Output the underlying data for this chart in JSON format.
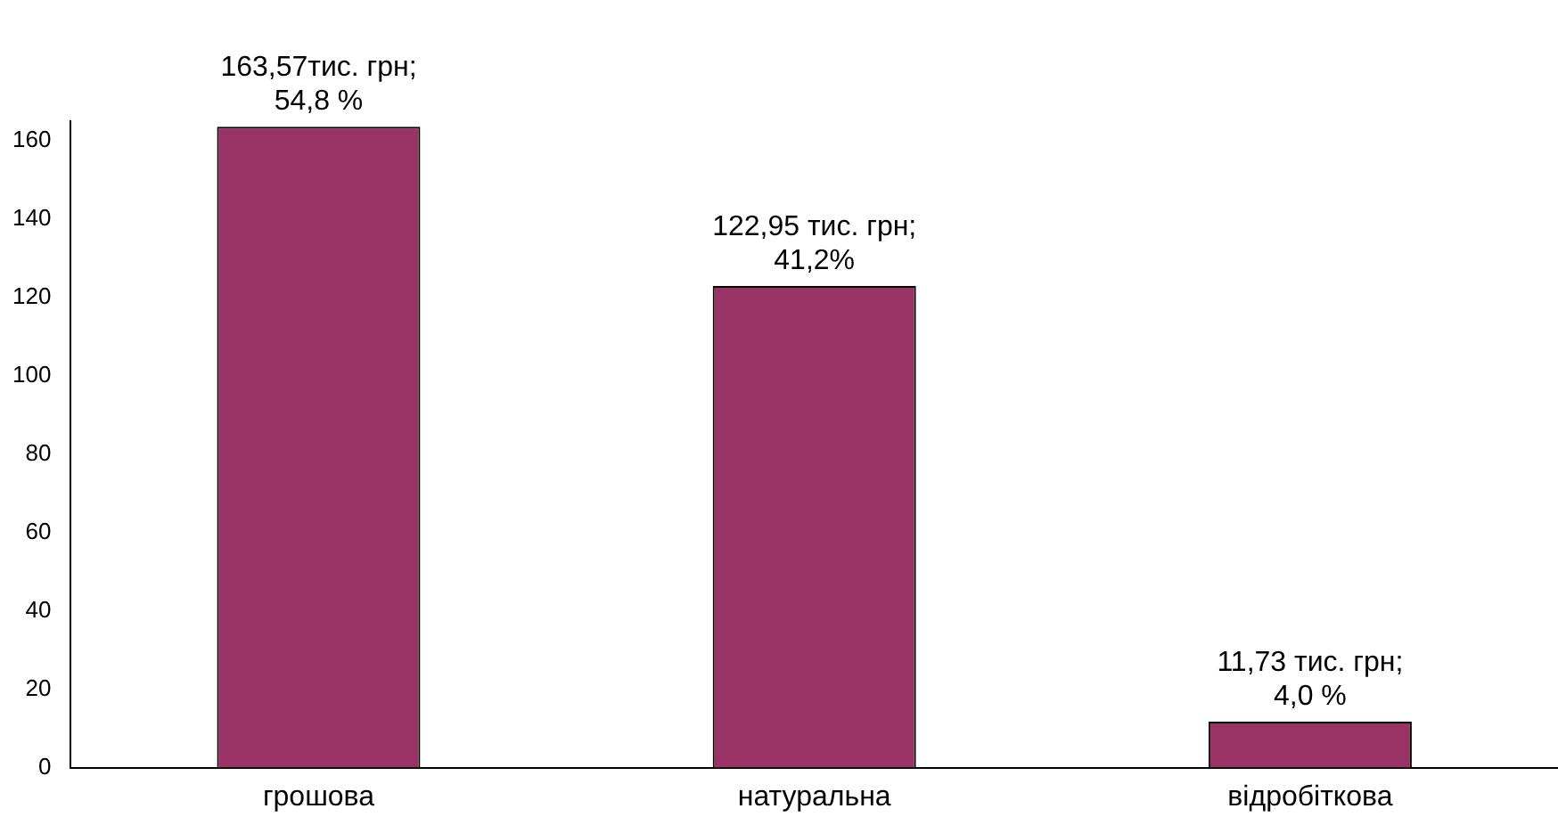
{
  "chart_data": {
    "type": "bar",
    "categories": [
      "грошова",
      "натуральна",
      "відробіткова"
    ],
    "values": [
      163.57,
      122.95,
      11.73
    ],
    "value_labels": [
      "163,57тис. грн;\n54,8 %",
      "122,95 тис. грн;\n41,2%",
      "11,73 тис. грн;\n4,0 %"
    ],
    "color": "#993366",
    "ylim": [
      0,
      165
    ],
    "yticks": [
      0,
      20,
      40,
      60,
      80,
      100,
      120,
      140,
      160
    ],
    "grid": false,
    "legend": false
  }
}
